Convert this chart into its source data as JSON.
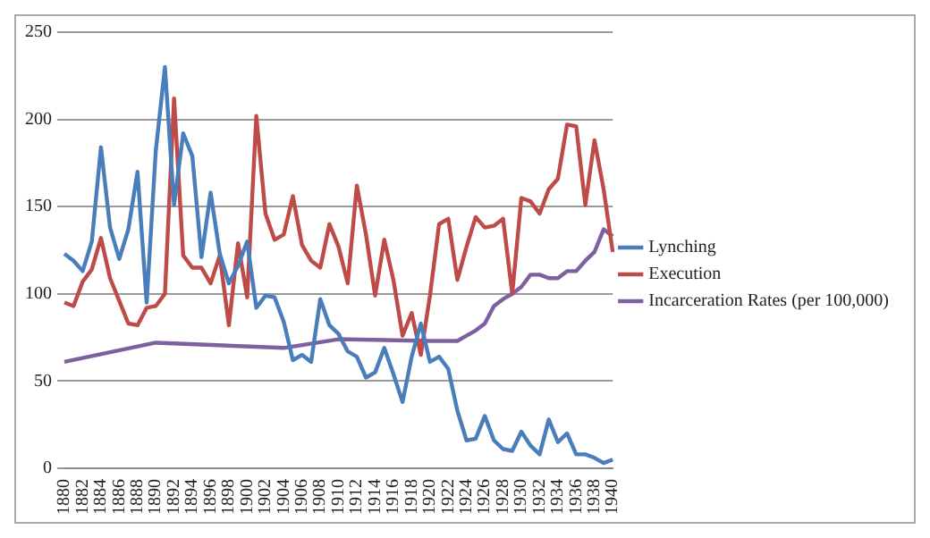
{
  "chart_data": {
    "type": "line",
    "categories": [
      "1880",
      null,
      "1882",
      null,
      "1884",
      null,
      "1886",
      null,
      "1888",
      null,
      "1890",
      null,
      "1892",
      null,
      "1894",
      null,
      "1896",
      null,
      "1898",
      null,
      "1900",
      null,
      "1902",
      null,
      "1904",
      null,
      "1906",
      null,
      "1908",
      null,
      "1910",
      null,
      "1912",
      null,
      "1914",
      null,
      "1916",
      null,
      "1918",
      null,
      "1920",
      null,
      "1922",
      null,
      "1924",
      null,
      "1926",
      null,
      "1928",
      null,
      "1930",
      null,
      "1932",
      null,
      "1934",
      null,
      "1936",
      null,
      "1938",
      null,
      "1940"
    ],
    "series": [
      {
        "name": "Lynching",
        "color": "#4a7ebb",
        "values": [
          123,
          119,
          113,
          130,
          184,
          138,
          120,
          137,
          170,
          95,
          182,
          230,
          151,
          192,
          179,
          121,
          158,
          123,
          106,
          116,
          130,
          92,
          99,
          98,
          84,
          62,
          65,
          61,
          97,
          82,
          77,
          67,
          64,
          52,
          55,
          69,
          54,
          38,
          64,
          83,
          61,
          64,
          57,
          33,
          16,
          17,
          30,
          16,
          11,
          10,
          21,
          13,
          8,
          28,
          15,
          20,
          8,
          8,
          6,
          3,
          5
        ]
      },
      {
        "name": "Execution",
        "color": "#be4b48",
        "values": [
          95,
          93,
          107,
          114,
          132,
          109,
          96,
          83,
          82,
          92,
          93,
          100,
          212,
          122,
          115,
          115,
          106,
          122,
          82,
          129,
          98,
          202,
          146,
          131,
          134,
          156,
          128,
          119,
          115,
          140,
          127,
          106,
          162,
          134,
          99,
          131,
          108,
          76,
          89,
          65,
          99,
          140,
          143,
          108,
          127,
          144,
          138,
          139,
          143,
          100,
          155,
          153,
          146,
          160,
          166,
          197,
          196,
          151,
          188,
          160,
          124
        ]
      },
      {
        "name": "Incarceration Rates (per 100,000)",
        "color": "#7d60a0",
        "values": [
          61,
          null,
          null,
          null,
          null,
          null,
          null,
          null,
          null,
          null,
          72,
          null,
          null,
          null,
          null,
          null,
          null,
          null,
          null,
          null,
          null,
          null,
          null,
          null,
          69,
          null,
          null,
          null,
          null,
          null,
          74,
          null,
          null,
          null,
          null,
          null,
          null,
          null,
          null,
          null,
          73,
          null,
          null,
          73,
          76,
          79,
          83,
          93,
          97,
          100,
          104,
          111,
          111,
          109,
          109,
          113,
          113,
          119,
          124,
          137,
          133
        ]
      }
    ],
    "ylim": [
      0,
      250
    ],
    "yticks": [
      0,
      50,
      100,
      150,
      200,
      250
    ],
    "grid": "y",
    "legend": "right",
    "marker": "none",
    "line_style": "solid"
  }
}
